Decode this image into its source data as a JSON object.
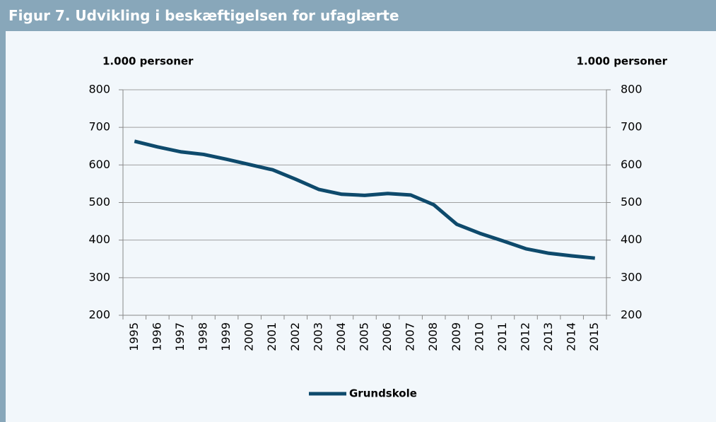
{
  "chart_data": {
    "type": "line",
    "title": "Figur 7. Udvikling i beskæftigelsen for ufaglærte",
    "y_label": "1.000 personer",
    "y2_label": "1.000 personer",
    "categories": [
      "1995",
      "1996",
      "1997",
      "1998",
      "1999",
      "2000",
      "2001",
      "2002",
      "2003",
      "2004",
      "2005",
      "2006",
      "2007",
      "2008",
      "2009",
      "2010",
      "2011",
      "2012",
      "2013",
      "2014",
      "2015"
    ],
    "series": [
      {
        "name": "Grundskole",
        "color": "#0e4a6c",
        "values": [
          663,
          648,
          635,
          628,
          615,
          601,
          587,
          562,
          535,
          522,
          519,
          524,
          520,
          494,
          442,
          418,
          398,
          377,
          365,
          358,
          352
        ]
      }
    ],
    "ylim": [
      200,
      800
    ],
    "yticks": [
      200,
      300,
      400,
      500,
      600,
      700,
      800
    ],
    "y2lim": [
      200,
      800
    ],
    "y2ticks": [
      200,
      300,
      400,
      500,
      600,
      700,
      800
    ],
    "grid": true,
    "legend": "bottom"
  }
}
